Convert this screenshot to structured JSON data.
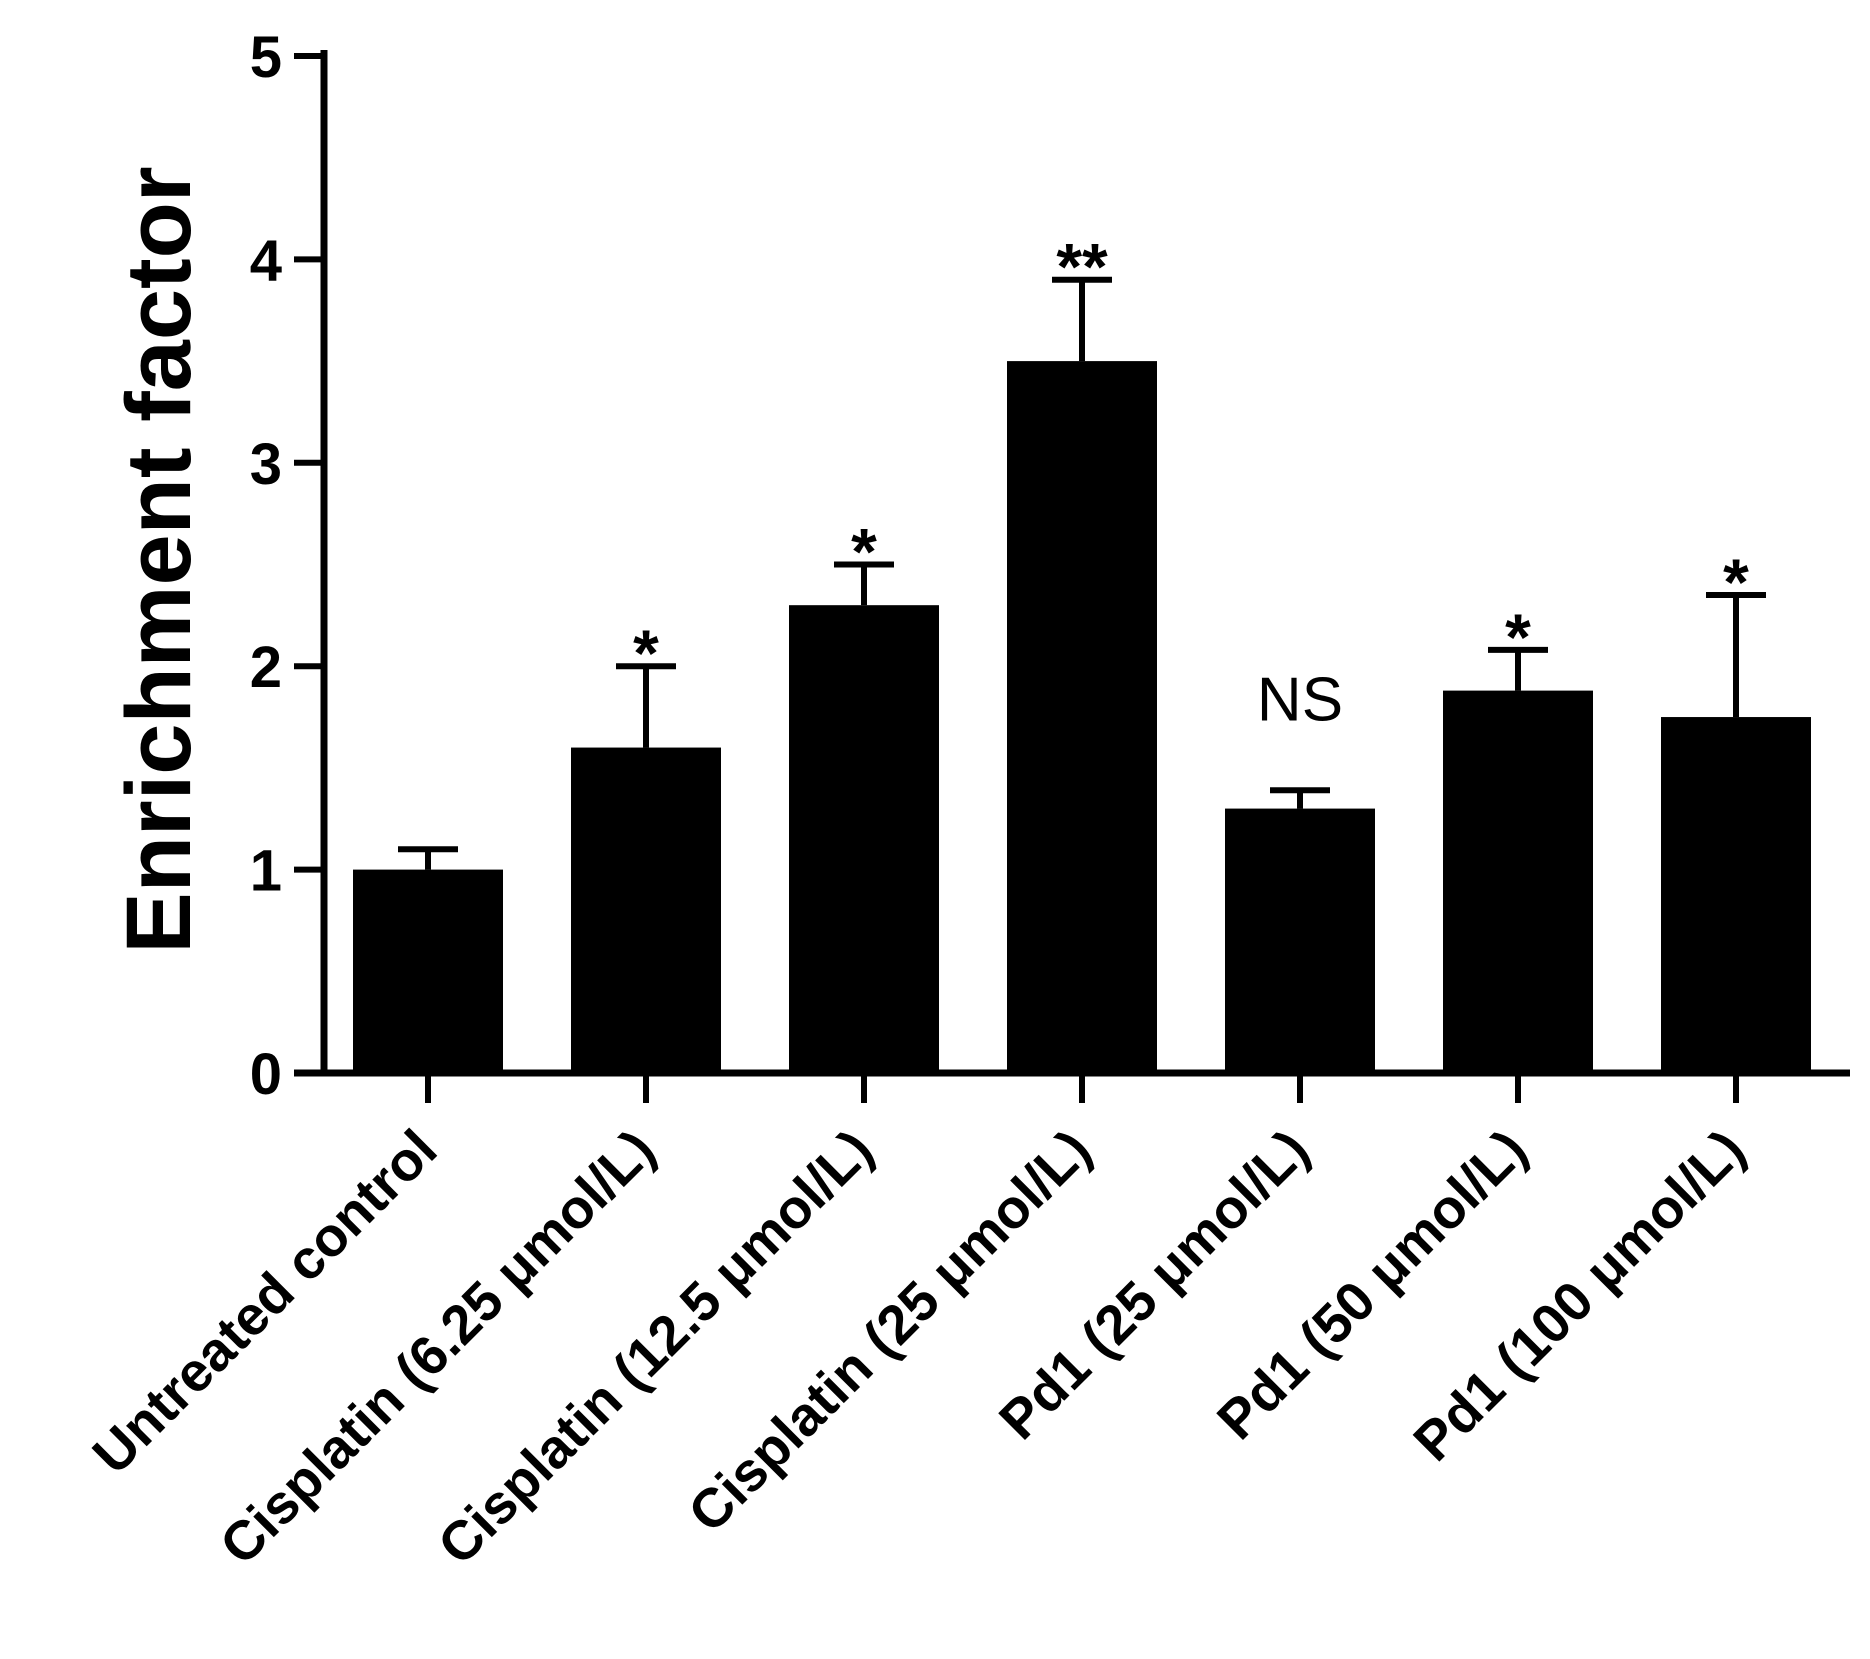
{
  "chart_data": {
    "type": "bar",
    "title": "",
    "xlabel": "",
    "ylabel": "Enrichment factor",
    "ylim": [
      0,
      5
    ],
    "yticks": [
      "0",
      "1",
      "2",
      "3",
      "4",
      "5"
    ],
    "categories": [
      "Untreated control",
      "Cisplatin (6.25 μmol/L)",
      "Cisplatin (12.5 μmol/L)",
      "Cisplatin (25 μmol/L)",
      "Pd1 (25 μmol/L)",
      "Pd1 (50 μmol/L)",
      "Pd1 (100 μmol/L)"
    ],
    "values": [
      1.0,
      1.6,
      2.3,
      3.5,
      1.3,
      1.88,
      1.75
    ],
    "error_upper": [
      0.1,
      0.4,
      0.2,
      0.4,
      0.09,
      0.2,
      0.6
    ],
    "significance": [
      "",
      "*",
      "*",
      "**",
      "NS",
      "*",
      "*"
    ]
  }
}
